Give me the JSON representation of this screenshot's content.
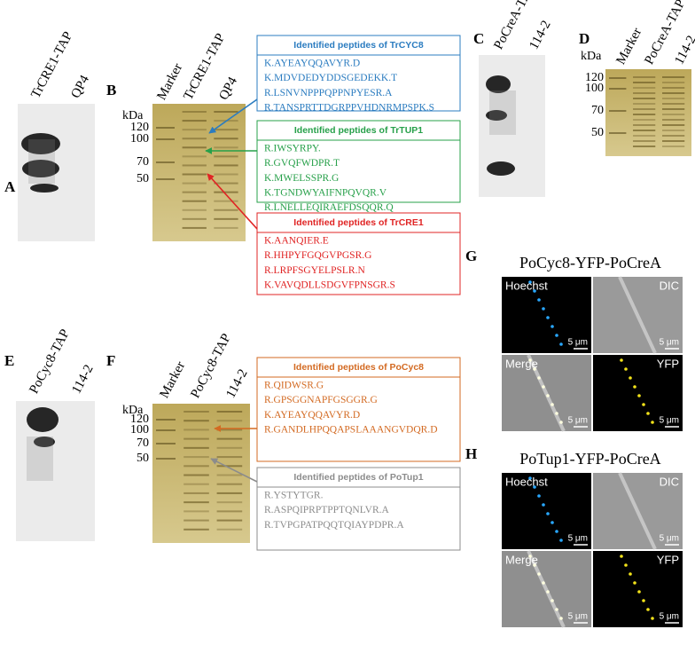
{
  "panels": {
    "A": {
      "label": "A",
      "lanes": [
        "TrCRE1-TAP",
        "QP4"
      ]
    },
    "B": {
      "label": "B",
      "kda": "kDa",
      "lanes": [
        "Marker",
        "TrCRE1-TAP",
        "QP4"
      ],
      "markers": [
        120,
        100,
        70,
        50
      ],
      "boxes": [
        {
          "title": "Identified peptides of  TrCYC8",
          "peptides": [
            "K.AYEAYQQAVYR.D",
            "K.MDVDEDYDDSGEDEKK.T",
            "R.LSNVNPPPQPPNPYESR.A",
            "R.TANSPRTTDGRPPVHDNRMPSPK.S"
          ]
        },
        {
          "title": "Identified peptides of  TrTUP1",
          "peptides": [
            "R.IWSYRPY.",
            "R.GVQFWDPR.T",
            "K.MWELSSPR.G",
            "K.TGNDWYAIFNPQVQR.V",
            "R.LNELLEQIRAEFDSQQR.Q"
          ]
        },
        {
          "title": "Identified peptides of  TrCRE1",
          "peptides": [
            "K.AANQIER.E",
            "R.HHPYFGQGVPGSR.G",
            "R.LRPFSGYELPSLR.N",
            "K.VAVQDLLSDGVFPNSGR.S"
          ]
        }
      ]
    },
    "C": {
      "label": "C",
      "lanes": [
        "PoCreA-TAP",
        "114-2"
      ]
    },
    "D": {
      "label": "D",
      "kda": "kDa",
      "lanes": [
        "Marker",
        "PoCreA-TAP",
        "114-2"
      ],
      "markers": [
        120,
        100,
        70,
        50
      ]
    },
    "E": {
      "label": "E",
      "lanes": [
        "PoCyc8-TAP",
        "114-2"
      ]
    },
    "F": {
      "label": "F",
      "kda": "kDa",
      "lanes": [
        "Marker",
        "PoCyc8-TAP",
        "114-2"
      ],
      "markers": [
        120,
        100,
        70,
        50
      ],
      "boxes": [
        {
          "title": "Identified peptides of  PoCyc8",
          "peptides": [
            "R.QIDWSR.G",
            "R.GPSGGNAPFGSGGR.G",
            "K.AYEAYQQAVYR.D",
            "R.GANDLHPQQAPSLAAANGVDQR.D"
          ]
        },
        {
          "title": "Identified peptides of  PoTup1",
          "peptides": [
            "R.YSTYTGR.",
            "R.ASPQIPRPTPPTQNLVR.A",
            "R.TVPGPATPQQTQIAYPDPR.A"
          ]
        }
      ]
    },
    "G": {
      "label": "G",
      "title": "PoCyc8-YFP-PoCreA",
      "channels": [
        "Hoechst",
        "DIC",
        "Merge",
        "YFP"
      ],
      "scale": "5 μm"
    },
    "H": {
      "label": "H",
      "title": "PoTup1-YFP-PoCreA",
      "channels": [
        "Hoechst",
        "DIC",
        "Merge",
        "YFP"
      ],
      "scale": "5 μm"
    }
  }
}
